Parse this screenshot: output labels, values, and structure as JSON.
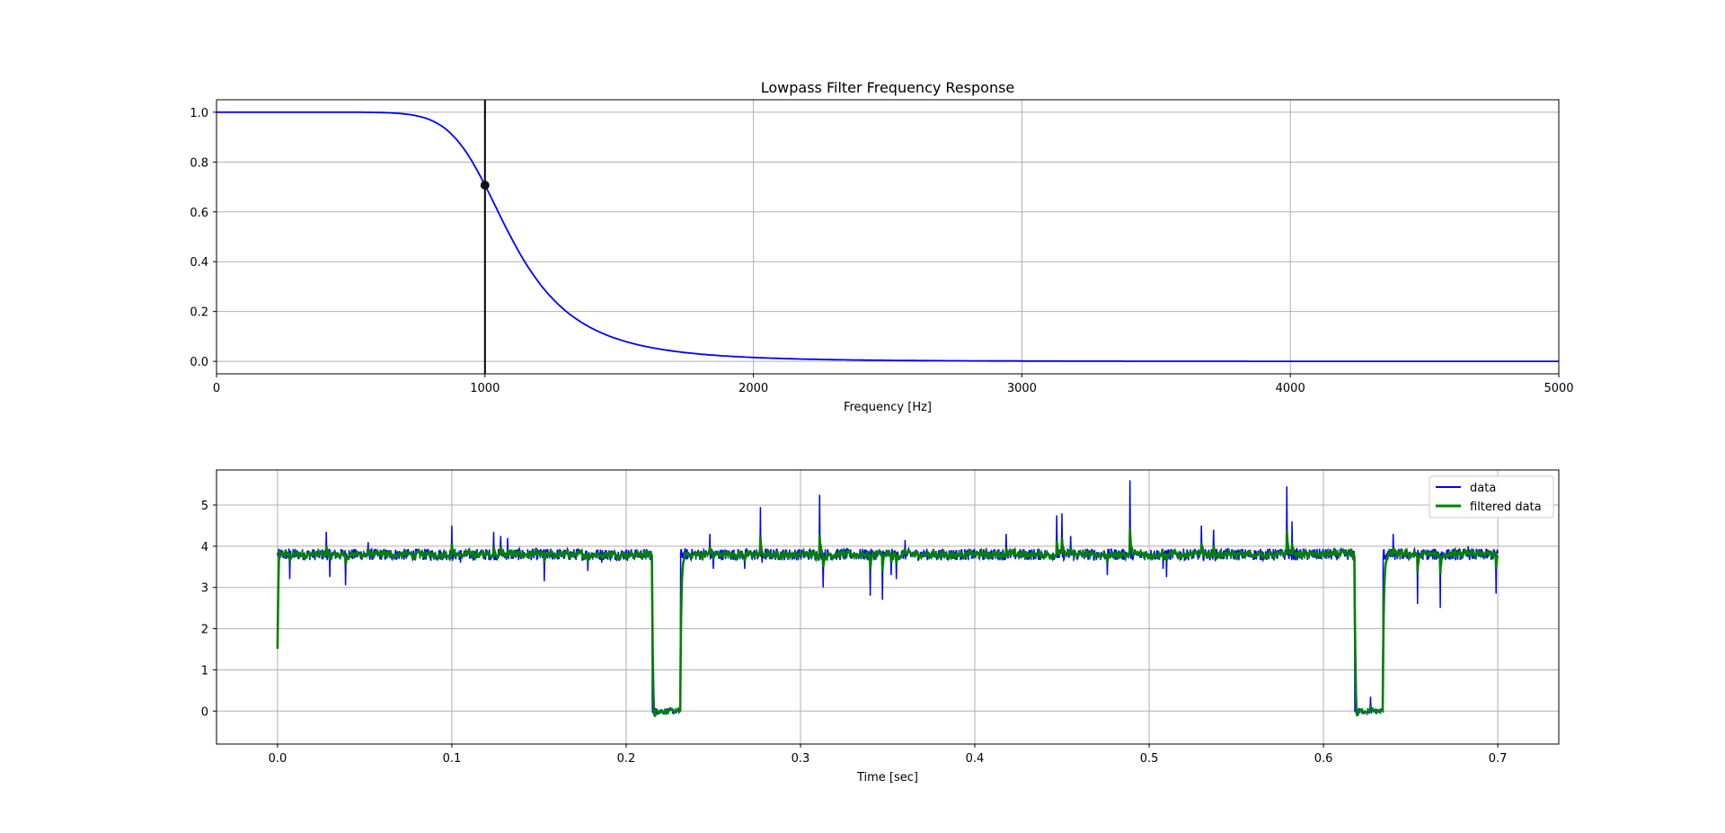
{
  "colors": {
    "response_line": "#0000ff",
    "cutoff_line": "#000000",
    "data_line": "#0000ff",
    "filtered_line": "#008000",
    "grid": "#b0b0b0"
  },
  "chart_data": [
    {
      "type": "line",
      "title": "Lowpass Filter Frequency Response",
      "xlabel": "Frequency [Hz]",
      "ylabel": "",
      "xlim": [
        0,
        5000
      ],
      "ylim": [
        -0.05,
        1.05
      ],
      "grid": true,
      "xticks": [
        "0",
        "1000",
        "2000",
        "3000",
        "4000",
        "5000"
      ],
      "yticks": [
        "0.0",
        "0.2",
        "0.4",
        "0.6",
        "0.8",
        "1.0"
      ],
      "series": [
        {
          "x": [
            0,
            200,
            400,
            500,
            600,
            700,
            800,
            900,
            1000,
            1100,
            1200,
            1300,
            1400,
            1500,
            1600,
            1800,
            2000,
            2200,
            2500,
            3000,
            3500,
            4000,
            4500,
            5000
          ],
          "y": [
            1.0,
            1.0,
            1.0,
            0.998,
            0.993,
            0.982,
            0.956,
            0.901,
            0.707,
            0.58,
            0.45,
            0.34,
            0.26,
            0.2,
            0.155,
            0.09,
            0.05,
            0.033,
            0.015,
            0.005,
            0.002,
            0.001,
            0.0005,
            0.0003
          ]
        }
      ],
      "cutoff": {
        "x": 1000,
        "y": 0.707
      }
    },
    {
      "type": "line",
      "title": "",
      "xlabel": "Time [sec]",
      "ylabel": "",
      "xlim": [
        -0.035,
        0.735
      ],
      "ylim": [
        -0.8,
        5.85
      ],
      "grid": true,
      "xticks": [
        "0.0",
        "0.1",
        "0.2",
        "0.3",
        "0.4",
        "0.5",
        "0.6",
        "0.7"
      ],
      "yticks": [
        "0",
        "1",
        "2",
        "3",
        "4",
        "5"
      ],
      "legend": "top-right",
      "baseline": 3.8,
      "low_segments": [
        [
          0.215,
          0.231
        ],
        [
          0.618,
          0.634
        ]
      ],
      "x_end": 0.7,
      "spikes": [
        [
          0.007,
          3.2
        ],
        [
          0.028,
          4.35
        ],
        [
          0.03,
          3.25
        ],
        [
          0.039,
          3.05
        ],
        [
          0.052,
          4.1
        ],
        [
          0.1,
          4.5
        ],
        [
          0.105,
          3.6
        ],
        [
          0.124,
          4.35
        ],
        [
          0.128,
          4.25
        ],
        [
          0.132,
          4.2
        ],
        [
          0.153,
          3.15
        ],
        [
          0.178,
          3.4
        ],
        [
          0.186,
          3.6
        ],
        [
          0.248,
          4.3
        ],
        [
          0.25,
          3.45
        ],
        [
          0.268,
          3.45
        ],
        [
          0.277,
          4.95
        ],
        [
          0.278,
          3.6
        ],
        [
          0.311,
          5.25
        ],
        [
          0.313,
          3.0
        ],
        [
          0.34,
          2.8
        ],
        [
          0.347,
          2.7
        ],
        [
          0.352,
          3.3
        ],
        [
          0.355,
          3.2
        ],
        [
          0.36,
          4.15
        ],
        [
          0.418,
          4.3
        ],
        [
          0.447,
          4.75
        ],
        [
          0.45,
          4.8
        ],
        [
          0.455,
          4.25
        ],
        [
          0.476,
          3.3
        ],
        [
          0.489,
          5.6
        ],
        [
          0.508,
          3.45
        ],
        [
          0.51,
          3.25
        ],
        [
          0.53,
          4.5
        ],
        [
          0.537,
          4.4
        ],
        [
          0.579,
          5.45
        ],
        [
          0.582,
          4.6
        ],
        [
          0.627,
          0.35
        ],
        [
          0.64,
          4.3
        ],
        [
          0.654,
          2.6
        ],
        [
          0.667,
          2.5
        ],
        [
          0.683,
          4.0
        ],
        [
          0.699,
          2.85
        ]
      ],
      "series": [
        {
          "name": "data"
        },
        {
          "name": "filtered data"
        }
      ]
    }
  ]
}
